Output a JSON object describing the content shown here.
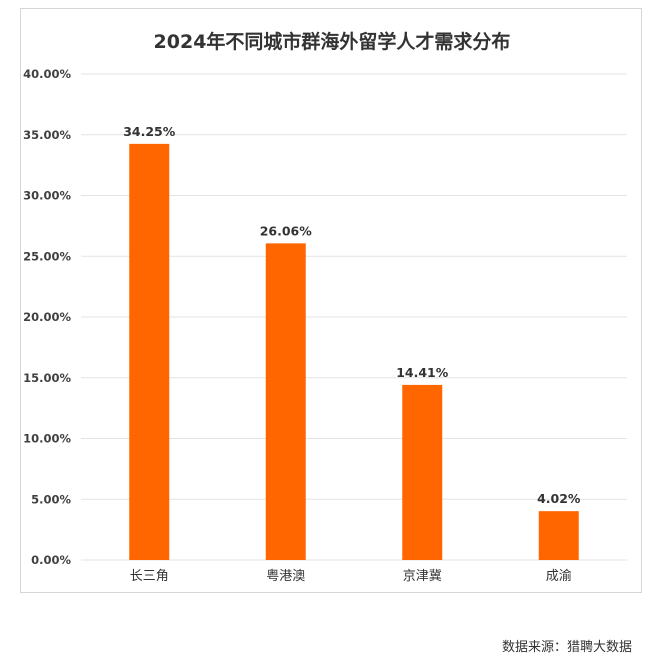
{
  "chart_data": {
    "type": "bar",
    "title": "2024年不同城市群海外留学人才需求分布",
    "categories": [
      "长三角",
      "粤港澳",
      "京津冀",
      "成渝"
    ],
    "values": [
      34.25,
      26.06,
      14.41,
      4.02
    ],
    "value_labels": [
      "34.25%",
      "26.06%",
      "14.41%",
      "4.02%"
    ],
    "y_ticks": [
      0,
      5,
      10,
      15,
      20,
      25,
      30,
      35,
      40
    ],
    "y_tick_labels": [
      "0.00%",
      "5.00%",
      "10.00%",
      "15.00%",
      "20.00%",
      "25.00%",
      "30.00%",
      "35.00%",
      "40.00%"
    ],
    "ylim": [
      0,
      40
    ],
    "xlabel": "",
    "ylabel": "",
    "grid": true,
    "legend": "none",
    "bar_color": "#ff6600",
    "grid_color": "#e3e3e3"
  },
  "footer": {
    "source": "数据来源：猎聘大数据"
  }
}
